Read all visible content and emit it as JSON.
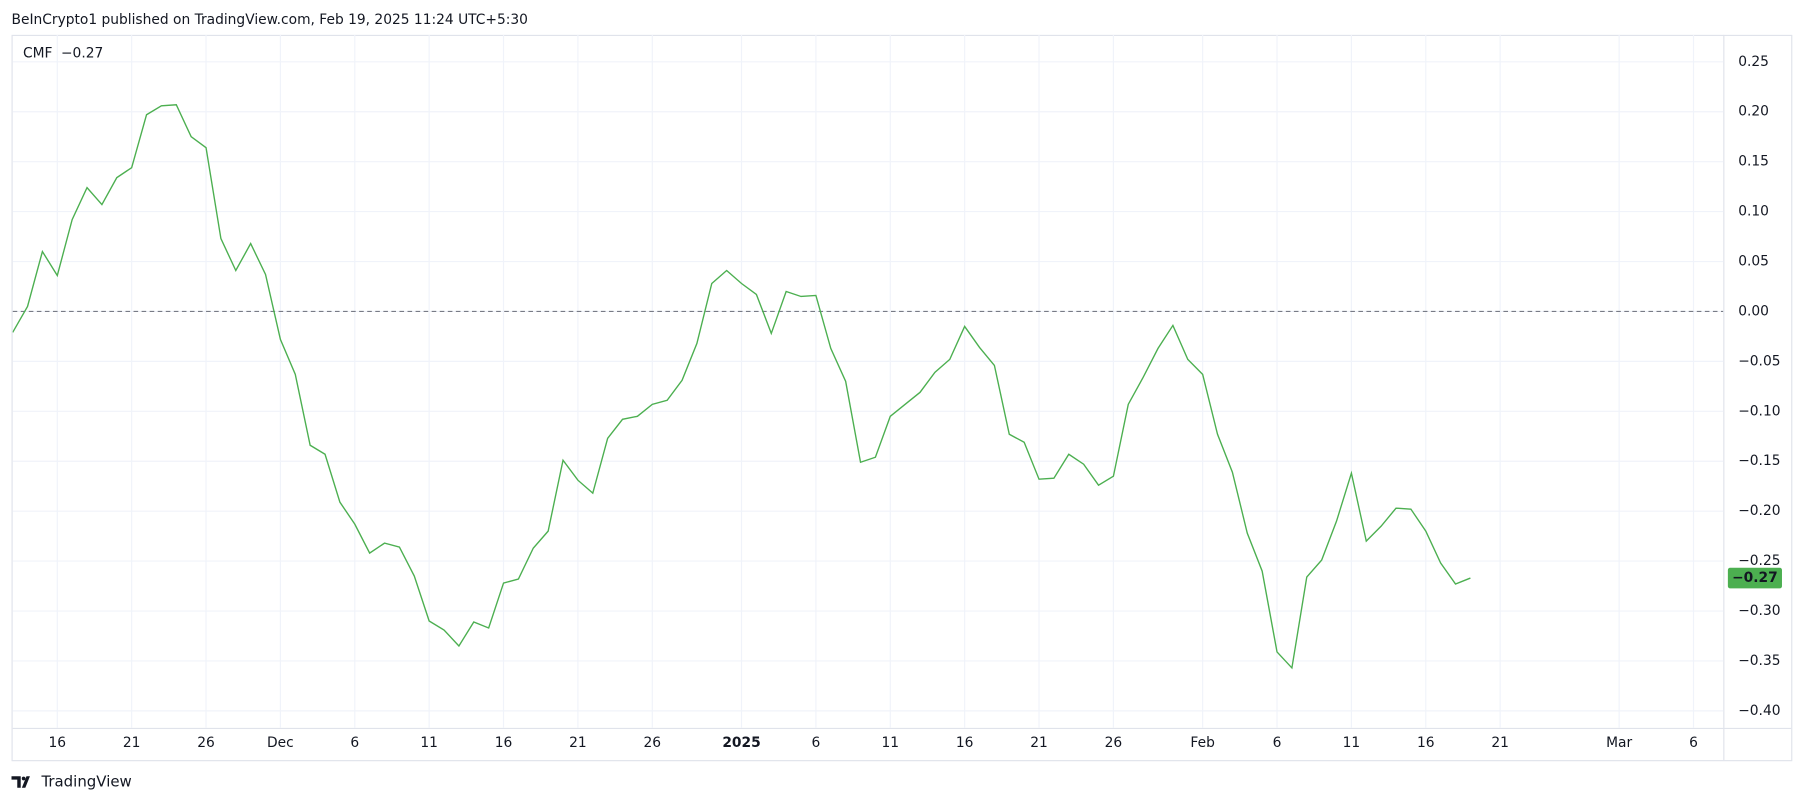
{
  "header": "BeInCrypto1 published on TradingView.com, Feb 19, 2025 11:24 UTC+5:30",
  "footer": "TradingView",
  "chart_data": {
    "type": "line",
    "legend_value": "−0.27",
    "price_label": "−0.27",
    "x": [
      "2024-11-13",
      "2024-11-14",
      "2024-11-15",
      "2024-11-16",
      "2024-11-17",
      "2024-11-18",
      "2024-11-19",
      "2024-11-20",
      "2024-11-21",
      "2024-11-22",
      "2024-11-23",
      "2024-11-24",
      "2024-11-25",
      "2024-11-26",
      "2024-11-27",
      "2024-11-28",
      "2024-11-29",
      "2024-11-30",
      "2024-12-01",
      "2024-12-02",
      "2024-12-03",
      "2024-12-04",
      "2024-12-05",
      "2024-12-06",
      "2024-12-07",
      "2024-12-08",
      "2024-12-09",
      "2024-12-10",
      "2024-12-11",
      "2024-12-12",
      "2024-12-13",
      "2024-12-14",
      "2024-12-15",
      "2024-12-16",
      "2024-12-17",
      "2024-12-18",
      "2024-12-19",
      "2024-12-20",
      "2024-12-21",
      "2024-12-22",
      "2024-12-23",
      "2024-12-24",
      "2024-12-25",
      "2024-12-26",
      "2024-12-27",
      "2024-12-28",
      "2024-12-29",
      "2024-12-30",
      "2024-12-31",
      "2025-01-01",
      "2025-01-02",
      "2025-01-03",
      "2025-01-04",
      "2025-01-05",
      "2025-01-06",
      "2025-01-07",
      "2025-01-08",
      "2025-01-09",
      "2025-01-10",
      "2025-01-11",
      "2025-01-12",
      "2025-01-13",
      "2025-01-14",
      "2025-01-15",
      "2025-01-16",
      "2025-01-17",
      "2025-01-18",
      "2025-01-19",
      "2025-01-20",
      "2025-01-21",
      "2025-01-22",
      "2025-01-23",
      "2025-01-24",
      "2025-01-25",
      "2025-01-26",
      "2025-01-27",
      "2025-01-28",
      "2025-01-29",
      "2025-01-30",
      "2025-01-31",
      "2025-02-01",
      "2025-02-02",
      "2025-02-03",
      "2025-02-04",
      "2025-02-05",
      "2025-02-06",
      "2025-02-07",
      "2025-02-08",
      "2025-02-09",
      "2025-02-10",
      "2025-02-11",
      "2025-02-12",
      "2025-02-13",
      "2025-02-14",
      "2025-02-15",
      "2025-02-16",
      "2025-02-17",
      "2025-02-18",
      "2025-02-19"
    ],
    "series": [
      {
        "name": "CMF",
        "color": "#4caf50",
        "values": [
          -0.021,
          0.005,
          0.06,
          0.036,
          0.092,
          0.124,
          0.107,
          0.134,
          0.144,
          0.197,
          0.206,
          0.207,
          0.175,
          0.164,
          0.073,
          0.041,
          0.068,
          0.037,
          -0.028,
          -0.063,
          -0.134,
          -0.143,
          -0.191,
          -0.213,
          -0.242,
          -0.232,
          -0.236,
          -0.265,
          -0.31,
          -0.319,
          -0.335,
          -0.311,
          -0.317,
          -0.272,
          -0.268,
          -0.237,
          -0.22,
          -0.149,
          -0.169,
          -0.182,
          -0.127,
          -0.108,
          -0.105,
          -0.093,
          -0.089,
          -0.069,
          -0.032,
          0.028,
          0.041,
          0.028,
          0.017,
          -0.022,
          0.02,
          0.015,
          0.016,
          -0.037,
          -0.07,
          -0.151,
          -0.146,
          -0.105,
          -0.093,
          -0.081,
          -0.061,
          -0.048,
          -0.015,
          -0.036,
          -0.054,
          -0.123,
          -0.131,
          -0.168,
          -0.167,
          -0.143,
          -0.153,
          -0.174,
          -0.165,
          -0.093,
          -0.066,
          -0.037,
          -0.014,
          -0.048,
          -0.063,
          -0.123,
          -0.161,
          -0.222,
          -0.26,
          -0.341,
          -0.357,
          -0.266,
          -0.249,
          -0.21,
          -0.162,
          -0.23,
          -0.215,
          -0.197,
          -0.198,
          -0.22,
          -0.252,
          -0.273,
          -0.267
        ]
      }
    ],
    "hline": 0,
    "xlim": [
      "2024-11-13",
      "2025-03-08"
    ],
    "xticks": [
      {
        "value": "2024-11-16",
        "label": "16"
      },
      {
        "value": "2024-11-21",
        "label": "21"
      },
      {
        "value": "2024-11-26",
        "label": "26"
      },
      {
        "value": "2024-12-01",
        "label": "Dec"
      },
      {
        "value": "2024-12-06",
        "label": "6"
      },
      {
        "value": "2024-12-11",
        "label": "11"
      },
      {
        "value": "2024-12-16",
        "label": "16"
      },
      {
        "value": "2024-12-21",
        "label": "21"
      },
      {
        "value": "2024-12-26",
        "label": "26"
      },
      {
        "value": "2025-01-01",
        "label": "2025",
        "bold": true
      },
      {
        "value": "2025-01-06",
        "label": "6"
      },
      {
        "value": "2025-01-11",
        "label": "11"
      },
      {
        "value": "2025-01-16",
        "label": "16"
      },
      {
        "value": "2025-01-21",
        "label": "21"
      },
      {
        "value": "2025-01-26",
        "label": "26"
      },
      {
        "value": "2025-02-01",
        "label": "Feb"
      },
      {
        "value": "2025-02-06",
        "label": "6"
      },
      {
        "value": "2025-02-11",
        "label": "11"
      },
      {
        "value": "2025-02-16",
        "label": "16"
      },
      {
        "value": "2025-02-21",
        "label": "21"
      },
      {
        "value": "2025-03-01",
        "label": "Mar"
      },
      {
        "value": "2025-03-06",
        "label": "6"
      }
    ],
    "ylim": [
      -0.417,
      0.277
    ],
    "yticks": [
      0.25,
      {
        "value": 0.2,
        "label": "0.20"
      },
      0.15,
      {
        "value": 0.1,
        "label": "0.10"
      },
      0.05,
      {
        "value": 0,
        "label": "0.00"
      },
      {
        "value": -0.05,
        "label": "−0.05"
      },
      {
        "value": -0.1,
        "label": "−0.10"
      },
      {
        "value": -0.15,
        "label": "−0.15"
      },
      {
        "value": -0.2,
        "label": "−0.20"
      },
      {
        "value": -0.25,
        "label": "−0.25"
      },
      {
        "value": -0.3,
        "label": "−0.30"
      },
      {
        "value": -0.35,
        "label": "−0.35"
      },
      {
        "value": -0.4,
        "label": "−0.40"
      }
    ],
    "grid": true
  }
}
